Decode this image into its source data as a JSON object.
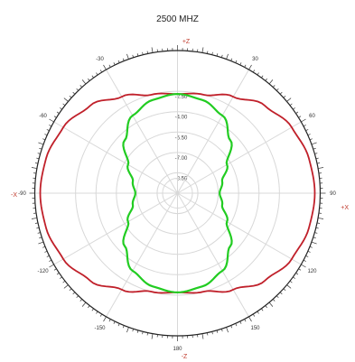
{
  "chart_data": {
    "type": "polar",
    "title": "2500 MHZ",
    "axis_labels": {
      "top": "+Z",
      "bottom": "-Z",
      "left": "-X",
      "right": "+X"
    },
    "angle_ticks": [
      {
        "angle": -150,
        "label": "-150"
      },
      {
        "angle": -120,
        "label": "-120"
      },
      {
        "angle": -90,
        "label": "-90"
      },
      {
        "angle": -60,
        "label": "-60"
      },
      {
        "angle": -30,
        "label": "-30"
      },
      {
        "angle": 0,
        "label": ""
      },
      {
        "angle": 30,
        "label": "30"
      },
      {
        "angle": 60,
        "label": "60"
      },
      {
        "angle": 90,
        "label": "90"
      },
      {
        "angle": 120,
        "label": "120"
      },
      {
        "angle": 150,
        "label": "150"
      },
      {
        "angle": 180,
        "label": "180"
      }
    ],
    "radial_ticks": [
      {
        "value": -2.5,
        "label": "-2.50"
      },
      {
        "value": -4.0,
        "label": "-4.00"
      },
      {
        "value": -5.5,
        "label": "-5.50"
      },
      {
        "value": -7.0,
        "label": "-7.00"
      },
      {
        "value": -8.5,
        "label": "-8.50"
      }
    ],
    "r_range": [
      -10,
      0.5
    ],
    "series": [
      {
        "color": "#c0202a",
        "angles": [
          0,
          15,
          30,
          45,
          60,
          75,
          90,
          105,
          120,
          135,
          150,
          165,
          180,
          195,
          210,
          225,
          240,
          255,
          270,
          285,
          300,
          315,
          330,
          345,
          360
        ],
        "values": [
          -2.7,
          -2.5,
          -1.8,
          -0.9,
          -0.3,
          0.0,
          0.1,
          0.0,
          -0.3,
          -0.9,
          -1.8,
          -2.5,
          -2.7,
          -2.5,
          -1.8,
          -0.9,
          -0.3,
          0.0,
          0.1,
          0.0,
          -0.3,
          -0.9,
          -1.8,
          -2.5,
          -2.7
        ]
      },
      {
        "color": "#22cc22",
        "angles": [
          0,
          15,
          30,
          45,
          60,
          75,
          90,
          105,
          120,
          135,
          150,
          165,
          180,
          195,
          210,
          225,
          240,
          255,
          270,
          285,
          300,
          315,
          330,
          345,
          360
        ],
        "values": [
          -2.7,
          -2.9,
          -3.4,
          -4.5,
          -5.8,
          -6.6,
          -6.9,
          -6.6,
          -5.8,
          -4.5,
          -3.4,
          -2.9,
          -2.7,
          -2.9,
          -3.4,
          -4.5,
          -5.8,
          -6.6,
          -6.9,
          -6.6,
          -5.8,
          -4.5,
          -3.4,
          -2.9,
          -2.7
        ]
      }
    ],
    "grid_color": "#d8d8d8",
    "label_color": "#c0392b"
  }
}
